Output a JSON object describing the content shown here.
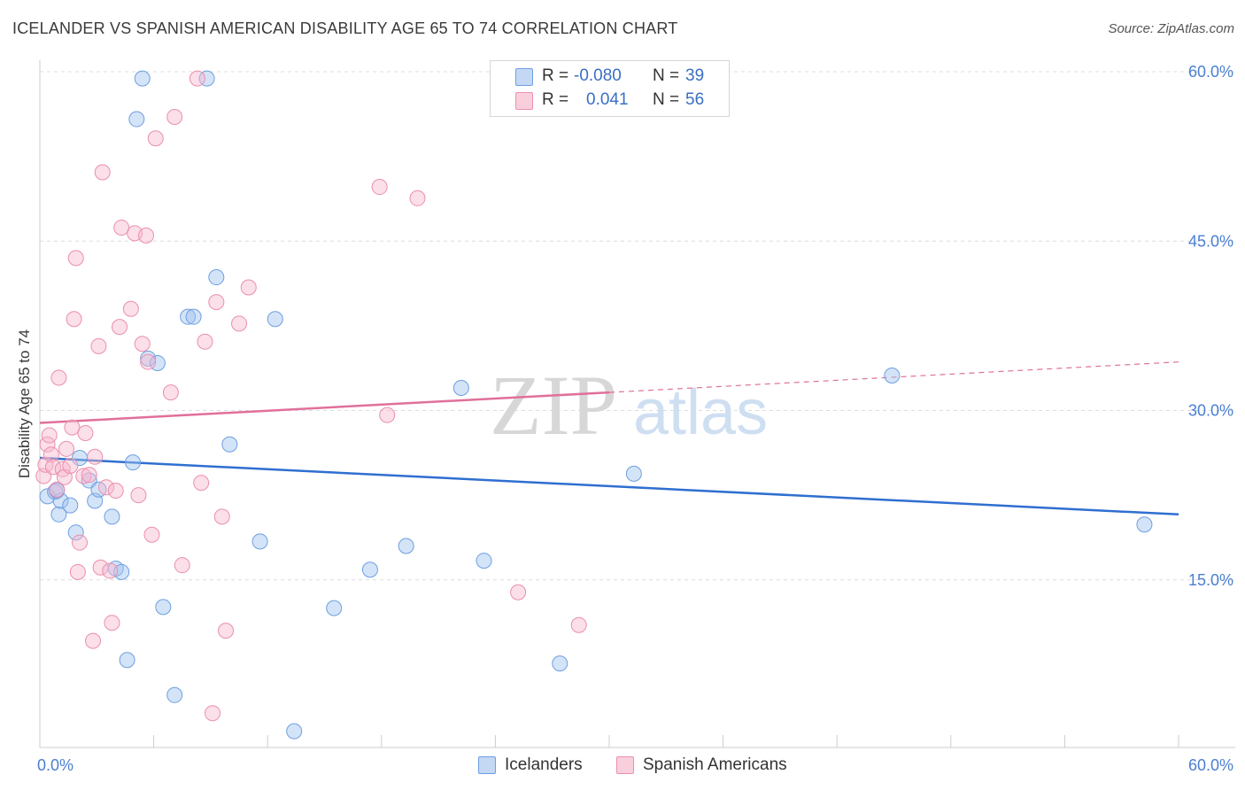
{
  "header": {
    "title": "ICELANDER VS SPANISH AMERICAN DISABILITY AGE 65 TO 74 CORRELATION CHART",
    "source": "Source: ZipAtlas.com"
  },
  "watermark": {
    "part1": "ZIP",
    "part2": "atlas"
  },
  "stats": [
    {
      "r_label": "R =",
      "r_value": "-0.080",
      "n_label": "N =",
      "n_value": "39",
      "color": "#6d9fe0"
    },
    {
      "r_label": "R =",
      "r_value": "0.041",
      "n_label": "N =",
      "n_value": "56",
      "color": "#eb8fae"
    }
  ],
  "legend": [
    {
      "label": "Icelanders",
      "color": "#6d9fe0"
    },
    {
      "label": "Spanish Americans",
      "color": "#eb8fae"
    }
  ],
  "chart_data": {
    "type": "scatter",
    "title": "ICELANDER VS SPANISH AMERICAN DISABILITY AGE 65 TO 74 CORRELATION CHART",
    "ylabel": "Disability Age 65 to 74",
    "xlabel": "",
    "xlim": [
      0,
      60
    ],
    "ylim": [
      0,
      60
    ],
    "x_tick_labels": [
      "0.0%",
      "60.0%"
    ],
    "y_ticks": [
      15,
      30,
      45,
      60
    ],
    "y_tick_labels": [
      "15.0%",
      "30.0%",
      "45.0%",
      "60.0%"
    ],
    "grid": true,
    "series": [
      {
        "name": "Icelanders",
        "color": "#6d9fe0",
        "trend": {
          "x": [
            0,
            60
          ],
          "y": [
            25.8,
            20.8
          ],
          "style": "solid"
        },
        "points": [
          [
            0.4,
            22.4
          ],
          [
            0.8,
            22.8
          ],
          [
            1.0,
            20.8
          ],
          [
            1.1,
            22.0
          ],
          [
            1.6,
            21.6
          ],
          [
            1.9,
            19.2
          ],
          [
            2.1,
            25.8
          ],
          [
            2.6,
            23.8
          ],
          [
            2.9,
            22.0
          ],
          [
            3.1,
            23.0
          ],
          [
            3.8,
            20.6
          ],
          [
            4.0,
            16.0
          ],
          [
            4.3,
            15.7
          ],
          [
            4.6,
            7.9
          ],
          [
            4.9,
            25.4
          ],
          [
            5.1,
            55.8
          ],
          [
            5.4,
            59.4
          ],
          [
            5.7,
            34.6
          ],
          [
            6.2,
            34.2
          ],
          [
            6.5,
            12.6
          ],
          [
            7.1,
            4.8
          ],
          [
            7.8,
            38.3
          ],
          [
            8.1,
            38.3
          ],
          [
            8.8,
            59.4
          ],
          [
            9.3,
            41.8
          ],
          [
            10.0,
            27.0
          ],
          [
            11.6,
            18.4
          ],
          [
            12.4,
            38.1
          ],
          [
            13.4,
            1.6
          ],
          [
            15.5,
            12.5
          ],
          [
            17.4,
            15.9
          ],
          [
            19.3,
            18.0
          ],
          [
            22.2,
            32.0
          ],
          [
            23.4,
            16.7
          ],
          [
            27.4,
            7.6
          ],
          [
            31.3,
            24.4
          ],
          [
            44.9,
            33.1
          ],
          [
            58.2,
            19.9
          ],
          [
            0.9,
            22.9
          ]
        ]
      },
      {
        "name": "Spanish Americans",
        "color": "#eb8fae",
        "trend": {
          "x": [
            0,
            30
          ],
          "y": [
            28.9,
            31.6
          ],
          "style": "solid",
          "extension": {
            "x": [
              30,
              60
            ],
            "y": [
              31.6,
              34.3
            ],
            "style": "dashed"
          }
        },
        "points": [
          [
            0.2,
            24.2
          ],
          [
            0.3,
            25.2
          ],
          [
            0.4,
            27.0
          ],
          [
            0.6,
            26.1
          ],
          [
            0.7,
            25.0
          ],
          [
            0.9,
            23.0
          ],
          [
            1.0,
            32.9
          ],
          [
            1.2,
            24.8
          ],
          [
            1.3,
            24.1
          ],
          [
            1.4,
            26.6
          ],
          [
            1.6,
            25.1
          ],
          [
            1.7,
            28.5
          ],
          [
            1.8,
            38.1
          ],
          [
            1.9,
            43.5
          ],
          [
            2.0,
            15.7
          ],
          [
            2.1,
            18.3
          ],
          [
            2.3,
            24.2
          ],
          [
            2.4,
            28.0
          ],
          [
            2.6,
            24.3
          ],
          [
            2.8,
            9.6
          ],
          [
            2.9,
            25.9
          ],
          [
            3.1,
            35.7
          ],
          [
            3.2,
            16.1
          ],
          [
            3.3,
            51.1
          ],
          [
            3.5,
            23.2
          ],
          [
            3.7,
            15.8
          ],
          [
            3.8,
            11.2
          ],
          [
            4.0,
            22.9
          ],
          [
            4.2,
            37.4
          ],
          [
            4.3,
            46.2
          ],
          [
            4.8,
            39.0
          ],
          [
            5.0,
            45.7
          ],
          [
            5.2,
            22.5
          ],
          [
            5.4,
            35.9
          ],
          [
            5.6,
            45.5
          ],
          [
            5.7,
            34.3
          ],
          [
            5.9,
            19.0
          ],
          [
            6.1,
            54.1
          ],
          [
            6.9,
            31.6
          ],
          [
            7.1,
            56.0
          ],
          [
            7.5,
            16.3
          ],
          [
            8.3,
            59.4
          ],
          [
            8.5,
            23.6
          ],
          [
            8.7,
            36.1
          ],
          [
            9.1,
            3.2
          ],
          [
            9.3,
            39.6
          ],
          [
            9.6,
            20.6
          ],
          [
            9.8,
            10.5
          ],
          [
            10.5,
            37.7
          ],
          [
            11.0,
            40.9
          ],
          [
            17.9,
            49.8
          ],
          [
            18.3,
            29.6
          ],
          [
            19.9,
            48.8
          ],
          [
            25.2,
            13.9
          ],
          [
            28.4,
            11.0
          ],
          [
            0.5,
            27.8
          ]
        ]
      }
    ]
  }
}
